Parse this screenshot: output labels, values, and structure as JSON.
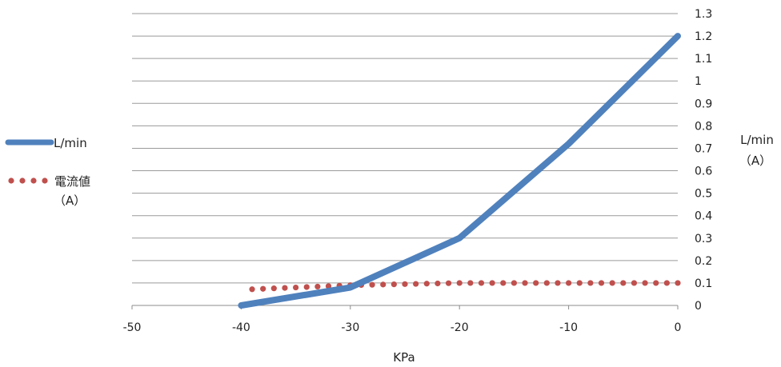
{
  "chart_data": {
    "type": "line",
    "x": [
      -40,
      -30,
      -20,
      -10,
      0
    ],
    "xlim": [
      -50,
      0
    ],
    "x_ticks": [
      -50,
      -40,
      -30,
      -20,
      -10,
      0
    ],
    "ylim": [
      0,
      1.3
    ],
    "y_ticks": [
      0,
      0.1,
      0.2,
      0.3,
      0.4,
      0.5,
      0.6,
      0.7,
      0.8,
      0.9,
      1,
      1.1,
      1.2,
      1.3
    ],
    "xlabel": "KPa",
    "ylabel_line1": "L/min",
    "ylabel_line2": "（A）",
    "grid": "horizontal",
    "legend_position": "left",
    "series": [
      {
        "name": "L/min",
        "style": "solid",
        "color": "#4F81BD",
        "x": [
          -40,
          -30,
          -20,
          -10,
          0
        ],
        "values": [
          0,
          0.08,
          0.3,
          0.72,
          1.2
        ]
      },
      {
        "name": "電流値",
        "name_line2": "（A）",
        "style": "dotted",
        "color": "#C0504D",
        "x": [
          -39,
          -38,
          -37,
          -36,
          -35,
          -34,
          -33,
          -32,
          -31,
          -30,
          -29,
          -28,
          -27,
          -26,
          -25,
          -24,
          -23,
          -22,
          -21,
          -20,
          -19,
          -18,
          -17,
          -16,
          -15,
          -14,
          -13,
          -12,
          -11,
          -10,
          -9,
          -8,
          -7,
          -6,
          -5,
          -4,
          -3,
          -2,
          -1,
          0
        ],
        "values": [
          0.072,
          0.074,
          0.076,
          0.078,
          0.08,
          0.082,
          0.084,
          0.086,
          0.088,
          0.09,
          0.091,
          0.092,
          0.093,
          0.094,
          0.095,
          0.096,
          0.097,
          0.098,
          0.099,
          0.1,
          0.1,
          0.1,
          0.1,
          0.1,
          0.1,
          0.1,
          0.1,
          0.1,
          0.1,
          0.1,
          0.1,
          0.1,
          0.1,
          0.1,
          0.1,
          0.1,
          0.1,
          0.1,
          0.1,
          0.1
        ]
      }
    ]
  }
}
